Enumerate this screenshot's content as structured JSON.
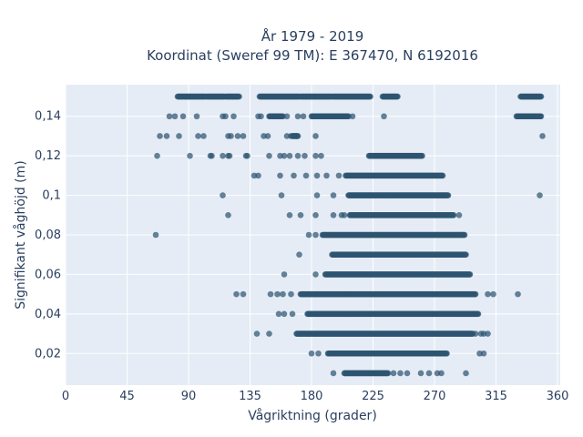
{
  "chart_data": {
    "type": "scatter",
    "title_line1": "År 1979 - 2019",
    "title_line2": "Koordinat (Sweref 99 TM): E 367470, N 6192016",
    "xlabel": "Vågriktning (grader)",
    "ylabel": "Signifikant våghöjd (m)",
    "xlim": [
      0,
      362
    ],
    "ylim": [
      0.004,
      0.156
    ],
    "x_ticks": [
      0,
      45,
      90,
      135,
      180,
      225,
      270,
      315,
      360
    ],
    "x_tick_labels": [
      "0",
      "45",
      "90",
      "135",
      "180",
      "225",
      "270",
      "315",
      "360"
    ],
    "y_ticks": [
      0.02,
      0.04,
      0.06,
      0.08,
      0.1,
      0.12,
      0.14
    ],
    "y_tick_labels": [
      "0,02",
      "0,04",
      "0,06",
      "0,08",
      "0,1",
      "0,12",
      "0,14"
    ],
    "colors": {
      "plot_bg": "#e5ecf6",
      "grid": "#ffffff",
      "marker": "#2e5470",
      "text": "#2a3f5f"
    },
    "series": [
      {
        "y": 0.15,
        "ranges": [
          [
            82,
            102
          ],
          [
            103,
            116
          ],
          [
            117,
            127
          ],
          [
            142,
            171
          ],
          [
            172,
            194
          ],
          [
            195,
            223
          ],
          [
            232,
            243
          ],
          [
            333,
            348
          ]
        ],
        "points": []
      },
      {
        "y": 0.14,
        "ranges": [
          [
            149,
            159
          ],
          [
            180,
            207
          ],
          [
            330,
            348
          ]
        ],
        "points": [
          76,
          80,
          86,
          96,
          115,
          117,
          123,
          141,
          143,
          162,
          170,
          174,
          210,
          233
        ]
      },
      {
        "y": 0.13,
        "ranges": [
          [
            166,
            170
          ]
        ],
        "points": [
          69,
          74,
          83,
          97,
          101,
          119,
          121,
          126,
          130,
          145,
          148,
          162,
          165,
          169,
          183,
          349
        ]
      },
      {
        "y": 0.12,
        "ranges": [
          [
            222,
            261
          ]
        ],
        "points": [
          67,
          91,
          106,
          107,
          115,
          119,
          120,
          132,
          133,
          149,
          157,
          160,
          164,
          170,
          175,
          183,
          187
        ]
      },
      {
        "y": 0.11,
        "ranges": [
          [
            205,
            276
          ]
        ],
        "points": [
          138,
          141,
          157,
          167,
          176,
          184,
          191,
          200
        ]
      },
      {
        "y": 0.1,
        "ranges": [
          [
            207,
            280
          ]
        ],
        "points": [
          115,
          158,
          184,
          196,
          347
        ]
      },
      {
        "y": 0.09,
        "ranges": [
          [
            208,
            284
          ]
        ],
        "points": [
          119,
          164,
          172,
          183,
          196,
          202,
          204,
          288
        ]
      },
      {
        "y": 0.08,
        "ranges": [
          [
            188,
            292
          ]
        ],
        "points": [
          66,
          178,
          183
        ]
      },
      {
        "y": 0.07,
        "ranges": [
          [
            195,
            293
          ]
        ],
        "points": [
          171
        ]
      },
      {
        "y": 0.06,
        "ranges": [
          [
            190,
            296
          ]
        ],
        "points": [
          160,
          183
        ]
      },
      {
        "y": 0.05,
        "ranges": [
          [
            172,
            300
          ]
        ],
        "points": [
          125,
          130,
          150,
          155,
          159,
          165,
          309,
          313,
          331
        ]
      },
      {
        "y": 0.04,
        "ranges": [
          [
            177,
            302
          ]
        ],
        "points": [
          156,
          160,
          166
        ]
      },
      {
        "y": 0.03,
        "ranges": [
          [
            169,
            298
          ]
        ],
        "points": [
          140,
          149,
          300,
          304,
          306,
          309
        ]
      },
      {
        "y": 0.02,
        "ranges": [
          [
            192,
            279
          ]
        ],
        "points": [
          180,
          185,
          303,
          306
        ]
      },
      {
        "y": 0.01,
        "ranges": [
          [
            204,
            236
          ]
        ],
        "points": [
          196,
          240,
          245,
          250,
          260,
          266,
          272,
          275,
          293
        ]
      }
    ]
  }
}
